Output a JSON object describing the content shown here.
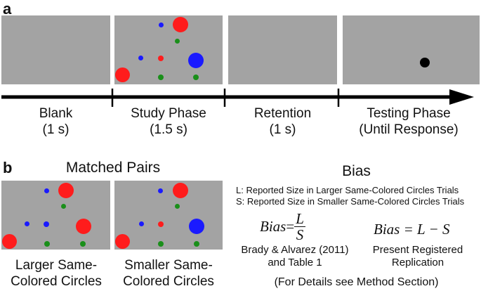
{
  "colors": {
    "screen_gray": "#a3a3a3",
    "red": "#ff1c1c",
    "blue": "#1a1aff",
    "green": "#1a8f1a",
    "black": "#000000"
  },
  "panel_a": {
    "label": "a",
    "timeline": [
      {
        "name": "Blank",
        "duration": "(1 s)"
      },
      {
        "name": "Study Phase",
        "duration": "(1.5 s)"
      },
      {
        "name": "Retention",
        "duration": "(1 s)"
      },
      {
        "name": "Testing Phase",
        "duration": "(Until Response)"
      }
    ]
  },
  "panel_b": {
    "label": "b",
    "matched_title": "Matched Pairs",
    "larger_caption_1": "Larger Same-",
    "larger_caption_2": "Colored Circles",
    "smaller_caption_1": "Smaller Same-",
    "smaller_caption_2": "Colored Circles",
    "bias_title": "Bias",
    "def_L": "L: Reported Size in Larger Same-Colored Circles Trials",
    "def_S": "S: Reported Size in Smaller Same-Colored Circles Trials",
    "eq1_lhs": "Bias",
    "eq1_eq": "=",
    "eq1_num": "L",
    "eq1_den": "S",
    "eq1_source_1": "Brady & Alvarez (2011)",
    "eq1_source_2": "and Table 1",
    "eq2": "Bias = L − S",
    "eq2_source_1": "Present Registered",
    "eq2_source_2": "Replication",
    "footnote": "(For Details see Method Section)"
  }
}
